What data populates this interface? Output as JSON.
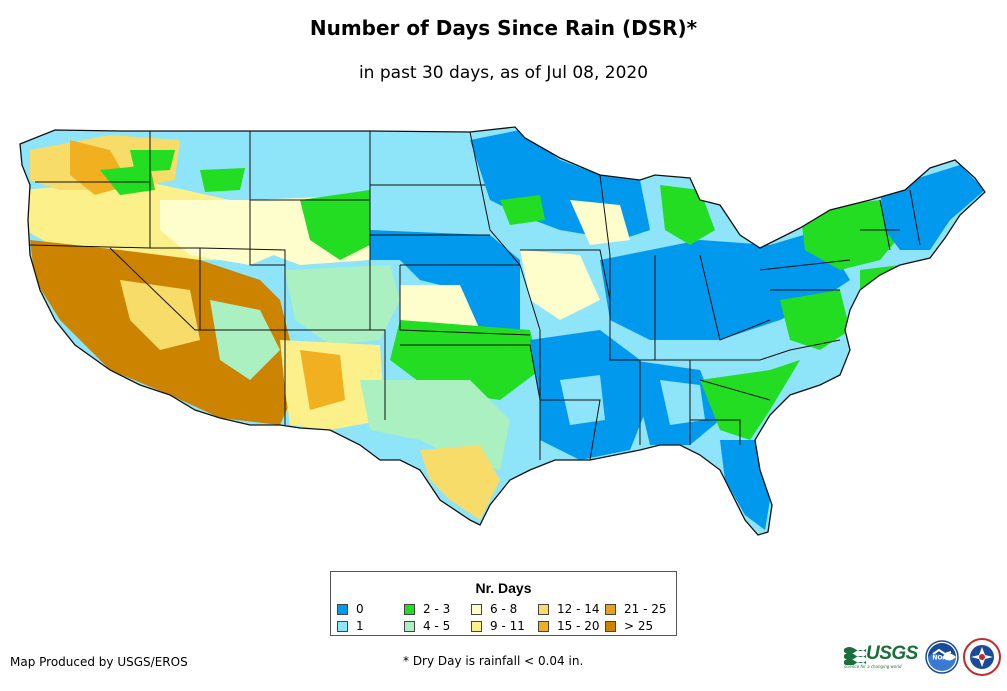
{
  "title": "Number of Days Since Rain (DSR)*",
  "subtitle": "in past 30 days, as of Jul 08, 2020",
  "legend": {
    "title": "Nr. Days",
    "items": [
      {
        "label": "0",
        "color": "#0099ee"
      },
      {
        "label": "1",
        "color": "#8ee4f8"
      },
      {
        "label": "2 - 3",
        "color": "#22dd22"
      },
      {
        "label": "4 - 5",
        "color": "#aaf0c0"
      },
      {
        "label": "6 - 8",
        "color": "#fefecc"
      },
      {
        "label": "9 - 11",
        "color": "#fbf08a"
      },
      {
        "label": "12 - 14",
        "color": "#f7dc6a"
      },
      {
        "label": "15 - 20",
        "color": "#f0b020"
      },
      {
        "label": "21 - 25",
        "color": "#e8a020"
      },
      {
        "label": "> 25",
        "color": "#cc8400"
      }
    ]
  },
  "credit": "Map Produced by USGS/EROS",
  "footnote": "* Dry Day is rainfall < 0.04 in.",
  "logos": {
    "usgs": "USGS",
    "usgs_tagline": "science for a changing world",
    "noaa": "NOAA"
  }
}
